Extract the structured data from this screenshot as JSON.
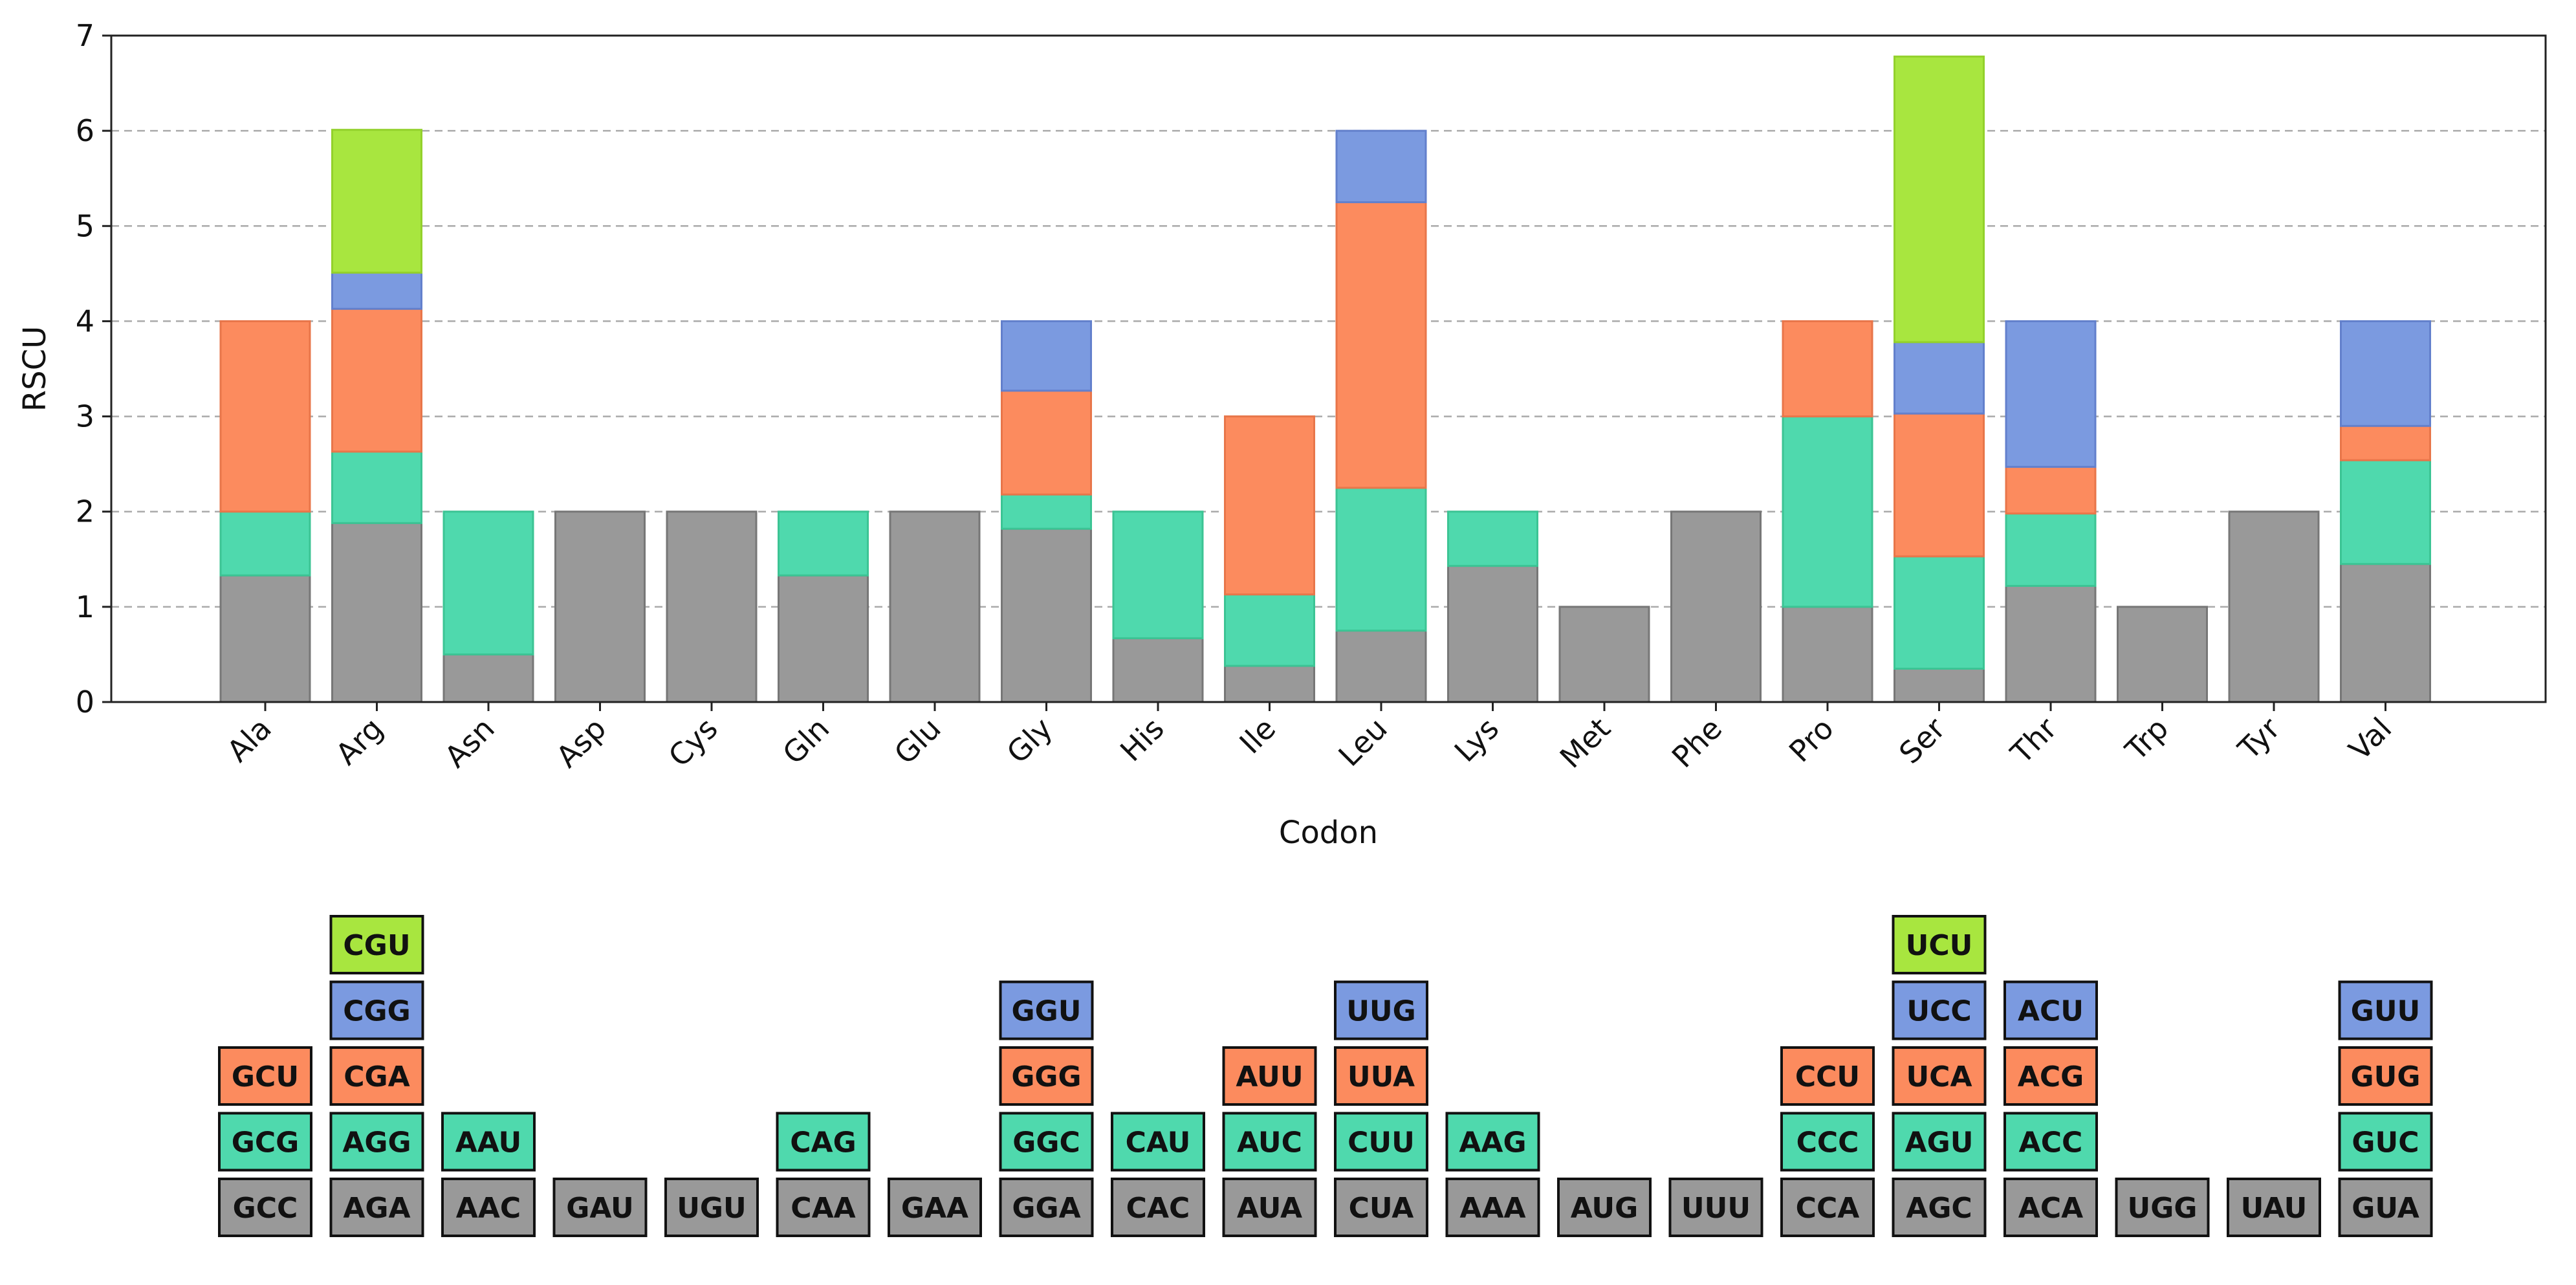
{
  "chart_data": {
    "type": "bar",
    "stacked": true,
    "xlabel": "Codon",
    "ylabel": "RSCU",
    "ylim": [
      0,
      7
    ],
    "yticks": [
      "0",
      "1",
      "2",
      "3",
      "4",
      "5",
      "6",
      "7"
    ],
    "grid": "horizontal dashed",
    "categories": [
      "Ala",
      "Arg",
      "Asn",
      "Asp",
      "Cys",
      "Gln",
      "Glu",
      "Gly",
      "His",
      "Ile",
      "Leu",
      "Lys",
      "Met",
      "Phe",
      "Pro",
      "Ser",
      "Thr",
      "Trp",
      "Tyr",
      "Val"
    ],
    "layer_colors": [
      "#999999",
      "#4fd9ad",
      "#fc8b5e",
      "#7b9ae0",
      "#a8e63f"
    ],
    "stacks": [
      {
        "category": "Ala",
        "segments": [
          {
            "codon": "GCC",
            "value": 1.33
          },
          {
            "codon": "GCG",
            "value": 0.67
          },
          {
            "codon": "GCU",
            "value": 2.0
          }
        ]
      },
      {
        "category": "Arg",
        "segments": [
          {
            "codon": "AGA",
            "value": 1.88
          },
          {
            "codon": "AGG",
            "value": 0.75
          },
          {
            "codon": "CGA",
            "value": 1.5
          },
          {
            "codon": "CGG",
            "value": 0.38
          },
          {
            "codon": "CGU",
            "value": 1.5
          }
        ]
      },
      {
        "category": "Asn",
        "segments": [
          {
            "codon": "AAC",
            "value": 0.5
          },
          {
            "codon": "AAU",
            "value": 1.5
          }
        ]
      },
      {
        "category": "Asp",
        "segments": [
          {
            "codon": "GAU",
            "value": 2.0
          }
        ]
      },
      {
        "category": "Cys",
        "segments": [
          {
            "codon": "UGU",
            "value": 2.0
          }
        ]
      },
      {
        "category": "Gln",
        "segments": [
          {
            "codon": "CAA",
            "value": 1.33
          },
          {
            "codon": "CAG",
            "value": 0.67
          }
        ]
      },
      {
        "category": "Glu",
        "segments": [
          {
            "codon": "GAA",
            "value": 2.0
          }
        ]
      },
      {
        "category": "Gly",
        "segments": [
          {
            "codon": "GGA",
            "value": 1.82
          },
          {
            "codon": "GGC",
            "value": 0.36
          },
          {
            "codon": "GGG",
            "value": 1.09
          },
          {
            "codon": "GGU",
            "value": 0.73
          }
        ]
      },
      {
        "category": "His",
        "segments": [
          {
            "codon": "CAC",
            "value": 0.67
          },
          {
            "codon": "CAU",
            "value": 1.33
          }
        ]
      },
      {
        "category": "Ile",
        "segments": [
          {
            "codon": "AUA",
            "value": 0.38
          },
          {
            "codon": "AUC",
            "value": 0.75
          },
          {
            "codon": "AUU",
            "value": 1.87
          }
        ]
      },
      {
        "category": "Leu",
        "segments": [
          {
            "codon": "CUA",
            "value": 0.75
          },
          {
            "codon": "CUU",
            "value": 1.5
          },
          {
            "codon": "UUA",
            "value": 3.0
          },
          {
            "codon": "UUG",
            "value": 0.75
          }
        ]
      },
      {
        "category": "Lys",
        "segments": [
          {
            "codon": "AAA",
            "value": 1.43
          },
          {
            "codon": "AAG",
            "value": 0.57
          }
        ]
      },
      {
        "category": "Met",
        "segments": [
          {
            "codon": "AUG",
            "value": 1.0
          }
        ]
      },
      {
        "category": "Phe",
        "segments": [
          {
            "codon": "UUU",
            "value": 2.0
          }
        ]
      },
      {
        "category": "Pro",
        "segments": [
          {
            "codon": "CCA",
            "value": 1.0
          },
          {
            "codon": "CCC",
            "value": 2.0
          },
          {
            "codon": "CCU",
            "value": 1.0
          }
        ]
      },
      {
        "category": "Ser",
        "segments": [
          {
            "codon": "AGC",
            "value": 0.35
          },
          {
            "codon": "AGU",
            "value": 1.18
          },
          {
            "codon": "UCA",
            "value": 1.5
          },
          {
            "codon": "UCC",
            "value": 0.75
          },
          {
            "codon": "UCU",
            "value": 3.0
          }
        ]
      },
      {
        "category": "Thr",
        "segments": [
          {
            "codon": "ACA",
            "value": 1.22
          },
          {
            "codon": "ACC",
            "value": 0.76
          },
          {
            "codon": "ACG",
            "value": 0.49
          },
          {
            "codon": "ACU",
            "value": 1.53
          }
        ]
      },
      {
        "category": "Trp",
        "segments": [
          {
            "codon": "UGG",
            "value": 1.0
          }
        ]
      },
      {
        "category": "Tyr",
        "segments": [
          {
            "codon": "UAU",
            "value": 2.0
          }
        ]
      },
      {
        "category": "Val",
        "segments": [
          {
            "codon": "GUA",
            "value": 1.45
          },
          {
            "codon": "GUC",
            "value": 1.09
          },
          {
            "codon": "GUG",
            "value": 0.36
          },
          {
            "codon": "GUU",
            "value": 1.1
          }
        ]
      }
    ]
  }
}
